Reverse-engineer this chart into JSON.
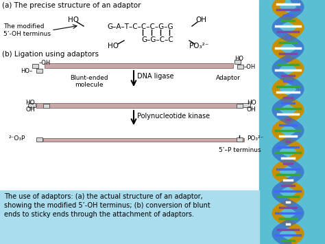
{
  "bg_color": "#ffffff",
  "right_panel_color": "#5bbfd4",
  "caption_bg_color": "#aaddee",
  "caption_text": "The use of adaptors: (a) the actual structure of an adaptor,\nshowing the modified 5’-OH terminus; (b) conversion of blunt\nends to sticky ends through the attachment of adaptors.",
  "section_a_title": "(a) The precise structure of an adaptor",
  "section_b_title": "(b) Ligation using adaptors",
  "bar_color": "#c8a8a8",
  "bar_edge_color": "#907070",
  "sq_color": "#d8d8d8",
  "sq_edge": "#555555"
}
